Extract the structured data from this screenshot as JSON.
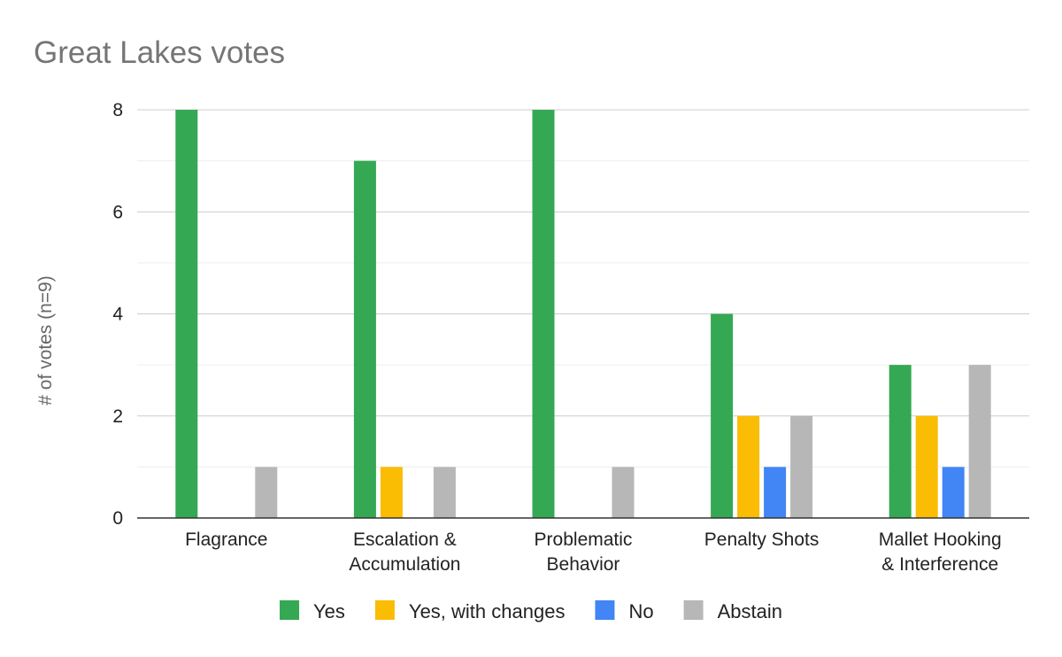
{
  "chart_data": {
    "type": "bar",
    "title": "Great Lakes votes",
    "xlabel": "",
    "ylabel": "# of votes (n=9)",
    "categories": [
      [
        "Flagrance"
      ],
      [
        "Escalation &",
        "Accumulation"
      ],
      [
        "Problematic",
        "Behavior"
      ],
      [
        "Penalty Shots"
      ],
      [
        "Mallet Hooking",
        "& Interference"
      ]
    ],
    "series": [
      {
        "name": "Yes",
        "color": "#34a853",
        "values": [
          8,
          7,
          8,
          4,
          3
        ]
      },
      {
        "name": "Yes, with changes",
        "color": "#fbbc04",
        "values": [
          0,
          1,
          0,
          2,
          2
        ]
      },
      {
        "name": "No",
        "color": "#4285f4",
        "values": [
          0,
          0,
          0,
          1,
          1
        ]
      },
      {
        "name": "Abstain",
        "color": "#b7b7b7",
        "values": [
          1,
          1,
          1,
          2,
          3
        ]
      }
    ],
    "ylim": [
      0,
      8
    ],
    "yticks": [
      0,
      2,
      4,
      6,
      8
    ],
    "minor_gridlines": true,
    "grid": true,
    "legend_position": "bottom"
  }
}
